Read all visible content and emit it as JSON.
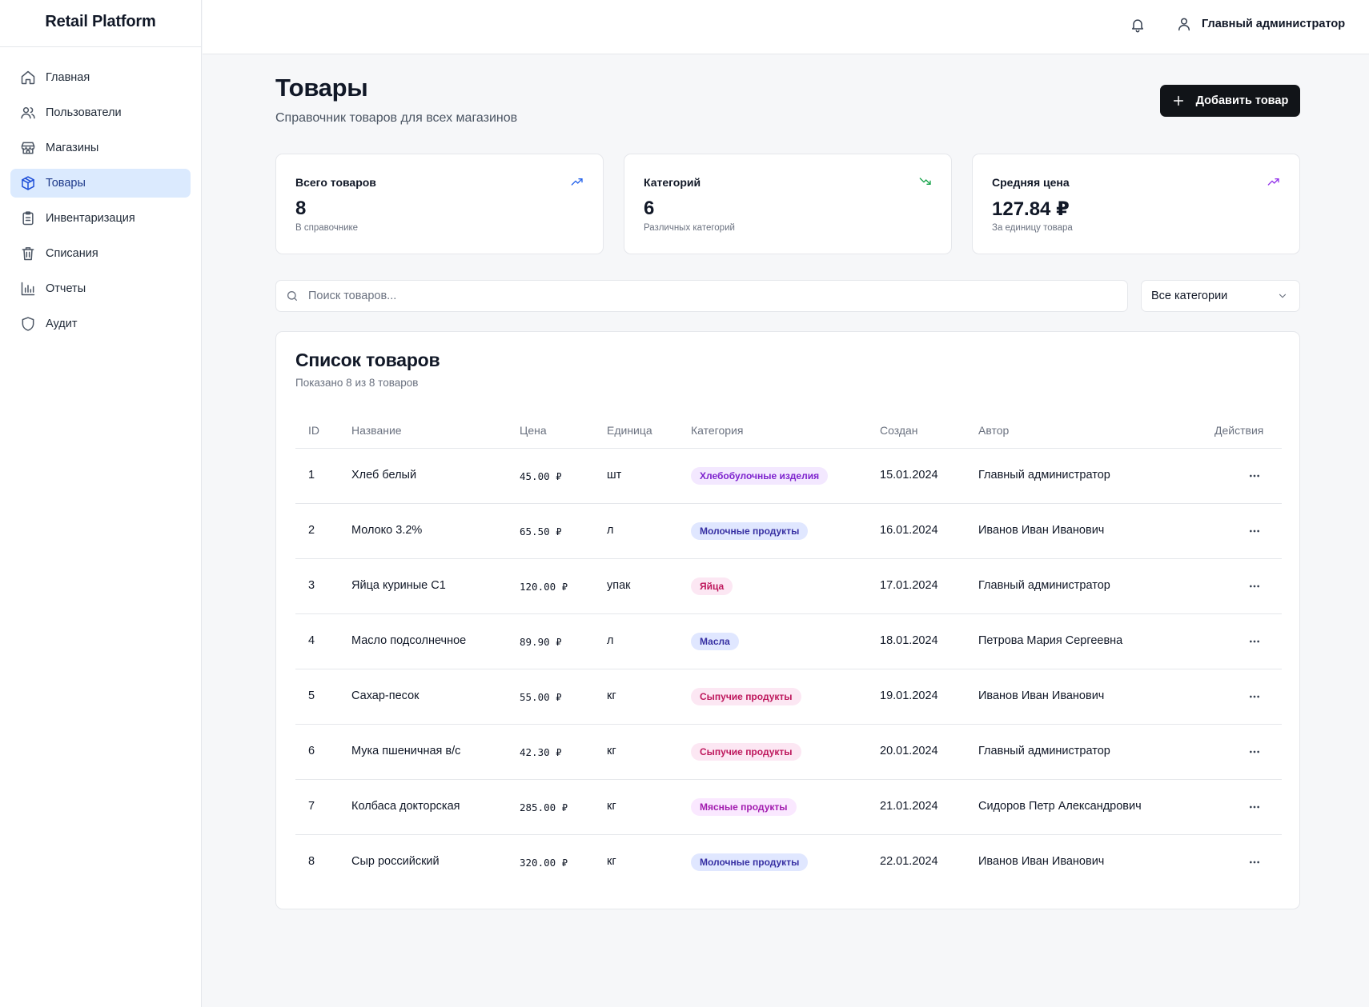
{
  "app": {
    "title": "Retail Platform"
  },
  "sidebar": {
    "items": [
      {
        "label": "Главная",
        "icon": "home-icon",
        "active": false
      },
      {
        "label": "Пользователи",
        "icon": "users-icon",
        "active": false
      },
      {
        "label": "Магазины",
        "icon": "store-icon",
        "active": false
      },
      {
        "label": "Товары",
        "icon": "package-icon",
        "active": true
      },
      {
        "label": "Инвентаризация",
        "icon": "clipboard-icon",
        "active": false
      },
      {
        "label": "Списания",
        "icon": "trash-icon",
        "active": false
      },
      {
        "label": "Отчеты",
        "icon": "bar-chart-icon",
        "active": false
      },
      {
        "label": "Аудит",
        "icon": "shield-icon",
        "active": false
      }
    ]
  },
  "topbar": {
    "user_name": "Главный администратор"
  },
  "page": {
    "title": "Товары",
    "subtitle": "Справочник товаров для всех магазинов",
    "add_button": "Добавить товар"
  },
  "stats": [
    {
      "label": "Всего товаров",
      "value": "8",
      "hint": "В справочнике",
      "trend": "up",
      "color": "#2563eb"
    },
    {
      "label": "Категорий",
      "value": "6",
      "hint": "Различных категорий",
      "trend": "down",
      "color": "#16a34a"
    },
    {
      "label": "Средняя цена",
      "value": "127.84 ₽",
      "hint": "За единицу товара",
      "trend": "up",
      "color": "#9333ea"
    }
  ],
  "search": {
    "placeholder": "Поиск товаров..."
  },
  "category_filter": {
    "selected": "Все категории"
  },
  "table": {
    "title": "Список товаров",
    "subtitle": "Показано 8 из 8 товаров",
    "columns": [
      "ID",
      "Название",
      "Цена",
      "Единица",
      "Категория",
      "Создан",
      "Автор",
      "Действия"
    ],
    "rows": [
      {
        "id": "1",
        "name": "Хлеб белый",
        "price": "45.00 ₽",
        "unit": "шт",
        "category": "Хлебобулочные изделия",
        "created": "15.01.2024",
        "author": "Главный администратор"
      },
      {
        "id": "2",
        "name": "Молоко 3.2%",
        "price": "65.50 ₽",
        "unit": "л",
        "category": "Молочные продукты",
        "created": "16.01.2024",
        "author": "Иванов Иван Иванович"
      },
      {
        "id": "3",
        "name": "Яйца куриные С1",
        "price": "120.00 ₽",
        "unit": "упак",
        "category": "Яйца",
        "created": "17.01.2024",
        "author": "Главный администратор"
      },
      {
        "id": "4",
        "name": "Масло подсолнечное",
        "price": "89.90 ₽",
        "unit": "л",
        "category": "Масла",
        "created": "18.01.2024",
        "author": "Петрова Мария Сергеевна"
      },
      {
        "id": "5",
        "name": "Сахар-песок",
        "price": "55.00 ₽",
        "unit": "кг",
        "category": "Сыпучие продукты",
        "created": "19.01.2024",
        "author": "Иванов Иван Иванович"
      },
      {
        "id": "6",
        "name": "Мука пшеничная в/с",
        "price": "42.30 ₽",
        "unit": "кг",
        "category": "Сыпучие продукты",
        "created": "20.01.2024",
        "author": "Главный администратор"
      },
      {
        "id": "7",
        "name": "Колбаса докторская",
        "price": "285.00 ₽",
        "unit": "кг",
        "category": "Мясные продукты",
        "created": "21.01.2024",
        "author": "Сидоров Петр Александрович"
      },
      {
        "id": "8",
        "name": "Сыр российский",
        "price": "320.00 ₽",
        "unit": "кг",
        "category": "Молочные продукты",
        "created": "22.01.2024",
        "author": "Иванов Иван Иванович"
      }
    ]
  },
  "category_colors": {
    "Хлебобулочные изделия": {
      "bg": "#f3e8ff",
      "fg": "#7e22ce"
    },
    "Молочные продукты": {
      "bg": "#e0e7ff",
      "fg": "#3730a3"
    },
    "Яйца": {
      "bg": "#fce7f3",
      "fg": "#be185d"
    },
    "Масла": {
      "bg": "#e0e7ff",
      "fg": "#3730a3"
    },
    "Сыпучие продукты": {
      "bg": "#fce7f3",
      "fg": "#be185d"
    },
    "Мясные продукты": {
      "bg": "#fae8ff",
      "fg": "#a21caf"
    }
  }
}
